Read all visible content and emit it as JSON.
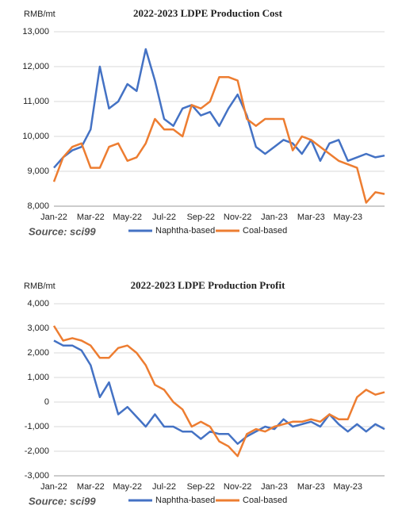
{
  "chart_data": [
    {
      "type": "line",
      "title": "2022-2023  LDPE Production Cost",
      "y_label": "RMB/mt",
      "source": "Source: sci99",
      "categories": [
        "Jan-22",
        null,
        null,
        null,
        "Mar-22",
        null,
        null,
        null,
        "May-22",
        null,
        null,
        null,
        "Jul-22",
        null,
        null,
        null,
        "Sep-22",
        null,
        null,
        null,
        "Nov-22",
        null,
        null,
        null,
        "Jan-23",
        null,
        null,
        null,
        "Mar-23",
        null,
        null,
        null,
        "May-23",
        null,
        null,
        null,
        null
      ],
      "series": [
        {
          "name": "Naphtha-based",
          "color": "#4472c4",
          "values": [
            9100,
            9400,
            9600,
            9700,
            10200,
            12000,
            10800,
            11000,
            11500,
            11300,
            12500,
            11600,
            10500,
            10300,
            10800,
            10900,
            10600,
            10700,
            10300,
            10800,
            11200,
            10600,
            9700,
            9500,
            9700,
            9900,
            9800,
            9500,
            9900,
            9300,
            9800,
            9900,
            9300,
            9400,
            9500,
            9400,
            9450
          ]
        },
        {
          "name": "Coal-based",
          "color": "#ed7d31",
          "values": [
            8700,
            9400,
            9700,
            9800,
            9100,
            9100,
            9700,
            9800,
            9300,
            9400,
            9800,
            10500,
            10200,
            10200,
            10000,
            10900,
            10800,
            11000,
            11700,
            11700,
            11600,
            10500,
            10300,
            10500,
            10500,
            10500,
            9600,
            10000,
            9900,
            9700,
            9500,
            9300,
            9200,
            9100,
            8100,
            8400,
            8350
          ]
        }
      ],
      "ylim": [
        8000,
        13000
      ],
      "yticks": [
        {
          "value": 8000,
          "label": "8,000"
        },
        {
          "value": 9000,
          "label": "9,000"
        },
        {
          "value": 10000,
          "label": "10,000"
        },
        {
          "value": 11000,
          "label": "11,000"
        },
        {
          "value": 12000,
          "label": "12,000"
        },
        {
          "value": 13000,
          "label": "13,000"
        }
      ],
      "grid": true,
      "legend": "bottom"
    },
    {
      "type": "line",
      "title": "2022-2023  LDPE Production Profit",
      "y_label": "RMB/mt",
      "source": "Source: sci99",
      "categories": [
        "Jan-22",
        null,
        null,
        null,
        "Mar-22",
        null,
        null,
        null,
        "May-22",
        null,
        null,
        null,
        "Jul-22",
        null,
        null,
        null,
        "Sep-22",
        null,
        null,
        null,
        "Nov-22",
        null,
        null,
        null,
        "Jan-23",
        null,
        null,
        null,
        "Mar-23",
        null,
        null,
        null,
        "May-23",
        null,
        null,
        null,
        null
      ],
      "series": [
        {
          "name": "Naphtha-based",
          "color": "#4472c4",
          "values": [
            2500,
            2300,
            2300,
            2100,
            1500,
            200,
            800,
            -500,
            -200,
            -600,
            -1000,
            -500,
            -1000,
            -1000,
            -1200,
            -1200,
            -1500,
            -1200,
            -1300,
            -1300,
            -1700,
            -1400,
            -1200,
            -1000,
            -1100,
            -700,
            -1000,
            -900,
            -800,
            -1000,
            -500,
            -900,
            -1200,
            -900,
            -1200,
            -900,
            -1100
          ]
        },
        {
          "name": "Coal-based",
          "color": "#ed7d31",
          "values": [
            3100,
            2500,
            2600,
            2500,
            2300,
            1800,
            1800,
            2200,
            2300,
            2000,
            1500,
            700,
            500,
            0,
            -300,
            -1000,
            -800,
            -1000,
            -1600,
            -1800,
            -2200,
            -1300,
            -1100,
            -1200,
            -1000,
            -900,
            -800,
            -800,
            -700,
            -800,
            -500,
            -700,
            -700,
            200,
            500,
            300,
            400
          ]
        }
      ],
      "ylim": [
        -3000,
        4000
      ],
      "yticks": [
        {
          "value": -3000,
          "label": "-3,000"
        },
        {
          "value": -2000,
          "label": "-2,000"
        },
        {
          "value": -1000,
          "label": "-1,000"
        },
        0,
        {
          "value": 1000,
          "label": "1,000"
        },
        {
          "value": 2000,
          "label": "2,000"
        },
        {
          "value": 3000,
          "label": "3,000"
        },
        {
          "value": 4000,
          "label": "4,000"
        }
      ],
      "grid": true,
      "legend": "bottom"
    }
  ]
}
